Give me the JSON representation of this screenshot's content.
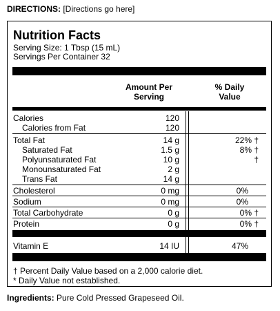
{
  "directions": {
    "label": "DIRECTIONS:",
    "text": "[Directions go here]"
  },
  "panel": {
    "title": "Nutrition Facts",
    "serving_size": "Serving Size: 1 Tbsp (15 mL)",
    "servings_per_container": "Servings Per Container 32",
    "col_amount_line1": "Amount Per",
    "col_amount_line2": "Serving",
    "col_dv_line1": "% Daily",
    "col_dv_line2": "Value",
    "rows": [
      {
        "label": "Calories",
        "amount": "120",
        "dv": ""
      },
      {
        "label": "Calories from Fat",
        "amount": "120",
        "dv": ""
      },
      {
        "label": "Total Fat",
        "amount": "14 g",
        "dv": "22% †"
      },
      {
        "label": "Saturated Fat",
        "amount": "1.5 g",
        "dv": "8% †"
      },
      {
        "label": "Polyunsaturated Fat",
        "amount": "10 g",
        "dv": "†"
      },
      {
        "label": "Monounsaturated Fat",
        "amount": "2 g",
        "dv": ""
      },
      {
        "label": "Trans Fat",
        "amount": "14 g",
        "dv": ""
      },
      {
        "label": "Cholesterol",
        "amount": "0 mg",
        "dv": "0%"
      },
      {
        "label": "Sodium",
        "amount": "0 mg",
        "dv": "0%"
      },
      {
        "label": "Total Carbohydrate",
        "amount": "0 g",
        "dv": "0% †"
      },
      {
        "label": "Protein",
        "amount": "0 g",
        "dv": "0% †"
      },
      {
        "label": "Vitamin E",
        "amount": "14 IU",
        "dv": "47%"
      }
    ],
    "footnote_1": "† Percent Daily Value based on a 2,000 calorie diet.",
    "footnote_2": "* Daily Value not established."
  },
  "ingredients": {
    "label": "Ingredients:",
    "text": "Pure Cold Pressed Grapeseed Oil."
  }
}
